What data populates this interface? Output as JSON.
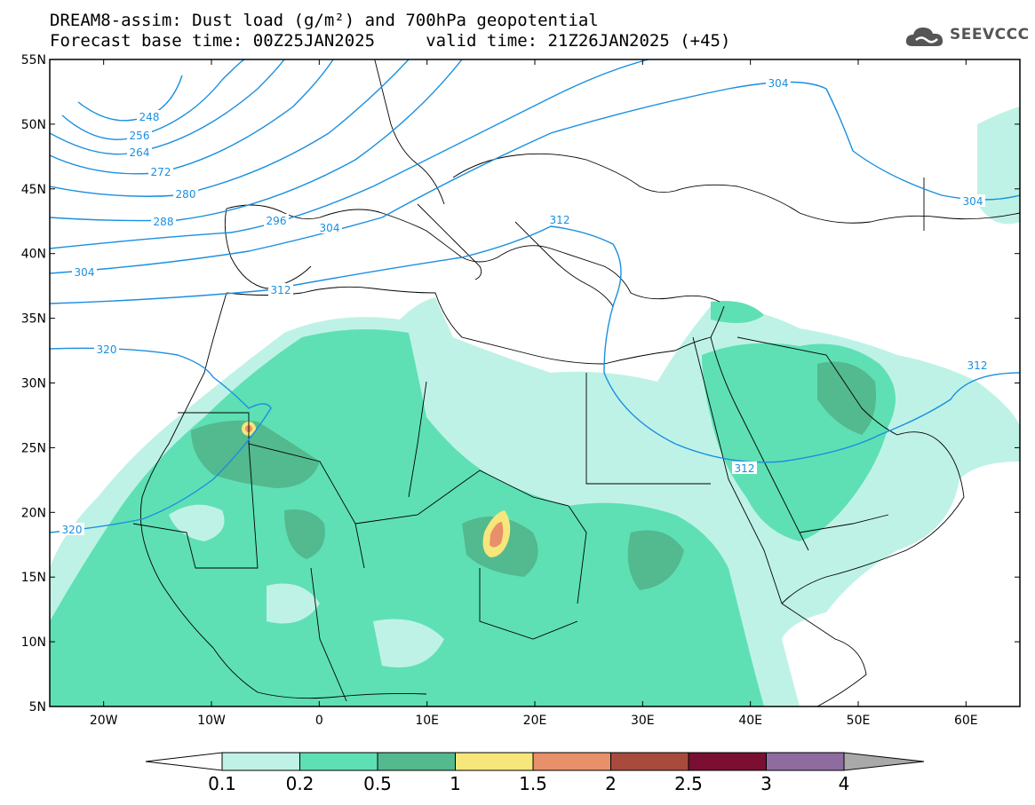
{
  "header": {
    "title_line1": "DREAM8-assim: Dust load (g/m²) and 700hPa geopotential",
    "title_line2": "Forecast base time: 00Z25JAN2025     valid time: 21Z26JAN2025 (+45)"
  },
  "logo": {
    "text": "SEEVCCC",
    "icon": "cloud-icon"
  },
  "map": {
    "lon_range": [
      -25,
      65
    ],
    "lat_range": [
      5,
      55
    ],
    "lat_ticks": [
      "55N",
      "50N",
      "45N",
      "40N",
      "35N",
      "30N",
      "25N",
      "20N",
      "15N",
      "10N",
      "5N"
    ],
    "lon_ticks": [
      "20W",
      "10W",
      "0",
      "10E",
      "20E",
      "30E",
      "40E",
      "50E",
      "60E"
    ],
    "contour_color": "#1a8fe0",
    "contour_labels": [
      "248",
      "256",
      "264",
      "272",
      "280",
      "288",
      "296",
      "304",
      "304",
      "304",
      "304",
      "312",
      "312",
      "312",
      "312",
      "320",
      "320"
    ]
  },
  "colorbar": {
    "labels": [
      "0.1",
      "0.2",
      "0.5",
      "1",
      "1.5",
      "2",
      "2.5",
      "3",
      "4"
    ],
    "colors": [
      "#ffffff",
      "#bff2e6",
      "#5ee0b4",
      "#53b98f",
      "#f7e67a",
      "#e8906a",
      "#a84b3d",
      "#7a0f32",
      "#8e6ca0",
      "#a9a9a9"
    ]
  }
}
